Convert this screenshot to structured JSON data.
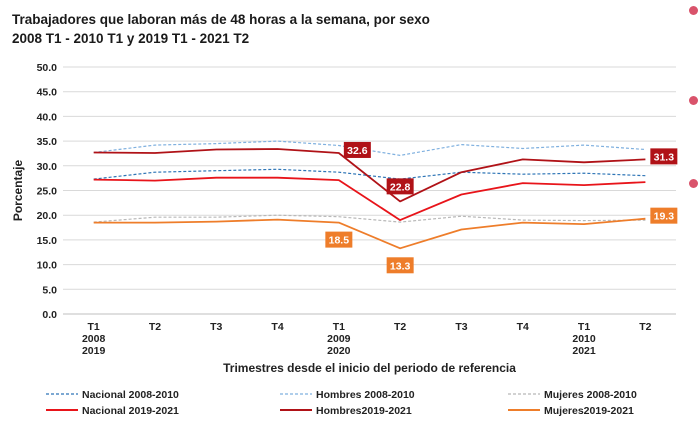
{
  "chart_data": {
    "type": "line",
    "title": [
      "Trabajadores que laboran más de 48 horas a la semana, por sexo",
      "2008 T1 - 2010 T1 y 2019 T1 - 2021 T2"
    ],
    "xlabel": "Trimestres desde el inicio del periodo de referencia",
    "ylabel": "Porcentaje",
    "ylim": [
      0,
      50
    ],
    "ytick_step": 5,
    "categories": [
      [
        "T1",
        "2008",
        "2019"
      ],
      [
        "T2"
      ],
      [
        "T3"
      ],
      [
        "T4"
      ],
      [
        "T1",
        "2009",
        "2020"
      ],
      [
        "T2"
      ],
      [
        "T3"
      ],
      [
        "T4"
      ],
      [
        "T1",
        "2010",
        "2021"
      ],
      [
        "T2"
      ]
    ],
    "series": [
      {
        "name": "Nacional 2008-2010",
        "color": "#2e75b6",
        "style": "dashed",
        "values": [
          27.3,
          28.7,
          29.0,
          29.3,
          28.7,
          27.3,
          28.7,
          28.3,
          28.5,
          28.0
        ]
      },
      {
        "name": "Hombres  2008-2010",
        "color": "#7fb0df",
        "style": "dashed",
        "values": [
          32.7,
          34.2,
          34.5,
          35.0,
          34.1,
          32.1,
          34.3,
          33.5,
          34.2,
          33.3
        ]
      },
      {
        "name": "Mujeres 2008-2010",
        "color": "#b8b8b8",
        "style": "dashed",
        "values": [
          18.6,
          19.6,
          19.6,
          20.0,
          19.7,
          18.6,
          19.8,
          19.0,
          18.9,
          19.0
        ]
      },
      {
        "name": "Nacional 2019-2021",
        "color": "#e8141a",
        "style": "solid",
        "values": [
          27.2,
          27.0,
          27.6,
          27.6,
          27.1,
          19.0,
          24.2,
          26.5,
          26.1,
          26.7
        ]
      },
      {
        "name": "Hombres2019-2021",
        "color": "#b01217",
        "style": "solid",
        "values": [
          32.7,
          32.6,
          33.3,
          33.4,
          32.6,
          22.8,
          28.7,
          31.3,
          30.7,
          31.3
        ]
      },
      {
        "name": "Mujeres2019-2021",
        "color": "#ee7d2a",
        "style": "solid",
        "values": [
          18.5,
          18.5,
          18.7,
          19.1,
          18.5,
          13.3,
          17.1,
          18.5,
          18.2,
          19.3
        ]
      }
    ],
    "data_labels": [
      {
        "series": 4,
        "index": 4,
        "text": "32.6",
        "bg": "#b01217",
        "pos": "right"
      },
      {
        "series": 4,
        "index": 5,
        "text": "22.8",
        "bg": "#b01217",
        "pos": "above"
      },
      {
        "series": 4,
        "index": 9,
        "text": "31.3",
        "bg": "#b01217",
        "pos": "right"
      },
      {
        "series": 5,
        "index": 4,
        "text": "18.5",
        "bg": "#ee7d2a",
        "pos": "below"
      },
      {
        "series": 5,
        "index": 5,
        "text": "13.3",
        "bg": "#ee7d2a",
        "pos": "below"
      },
      {
        "series": 5,
        "index": 9,
        "text": "19.3",
        "bg": "#ee7d2a",
        "pos": "right"
      }
    ],
    "legend_position": "bottom"
  }
}
